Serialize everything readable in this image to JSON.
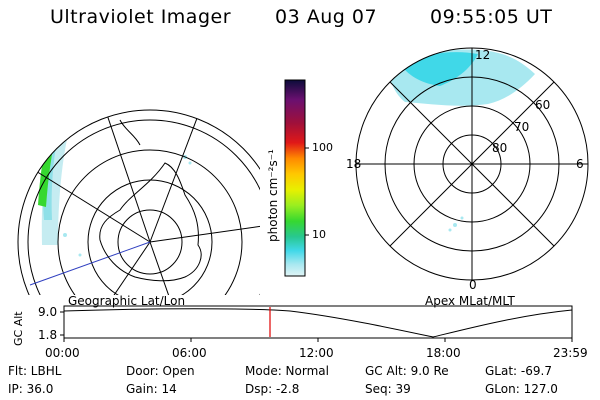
{
  "header": {
    "instrument": "Ultraviolet Imager",
    "date": "03 Aug 07",
    "time": "09:55:05 UT"
  },
  "colorbar": {
    "unit": "photon cm⁻²s⁻¹",
    "ticks": [
      "100",
      "10"
    ],
    "scale": "log",
    "colors": [
      "#0c0c3a",
      "#6a1070",
      "#a0103a",
      "#e01818",
      "#ff8a00",
      "#ffc800",
      "#e8f000",
      "#9aee20",
      "#36d830",
      "#28c890",
      "#40d8e8",
      "#a8e8f0",
      "#e0f4f6"
    ]
  },
  "geo_panel": {
    "label": "Geographic Lat/Lon"
  },
  "apex_panel": {
    "label": "Apex MLat/MLT",
    "mlt_labels": [
      "12",
      "18",
      "6",
      "0"
    ],
    "mlat_labels": [
      "60",
      "70",
      "80"
    ]
  },
  "timeline": {
    "axis_label": "GC Alt",
    "y_ticks": [
      "9.0",
      "1.8"
    ],
    "x_ticks": [
      "00:00",
      "06:00",
      "12:00",
      "18:00",
      "23:59"
    ],
    "current_marker_color": "#e00000"
  },
  "footer": {
    "filter": "Flt: LBHL",
    "ip": "IP: 36.0",
    "door": "Door: Open",
    "gain": "Gain: 14",
    "mode": "Mode: Normal",
    "dsp": "Dsp:   -2.8",
    "gc_alt": "GC Alt: 9.0 Re",
    "seq": "Seq: 39",
    "glat": "GLat: -69.7",
    "glon": "GLon: 127.0"
  }
}
